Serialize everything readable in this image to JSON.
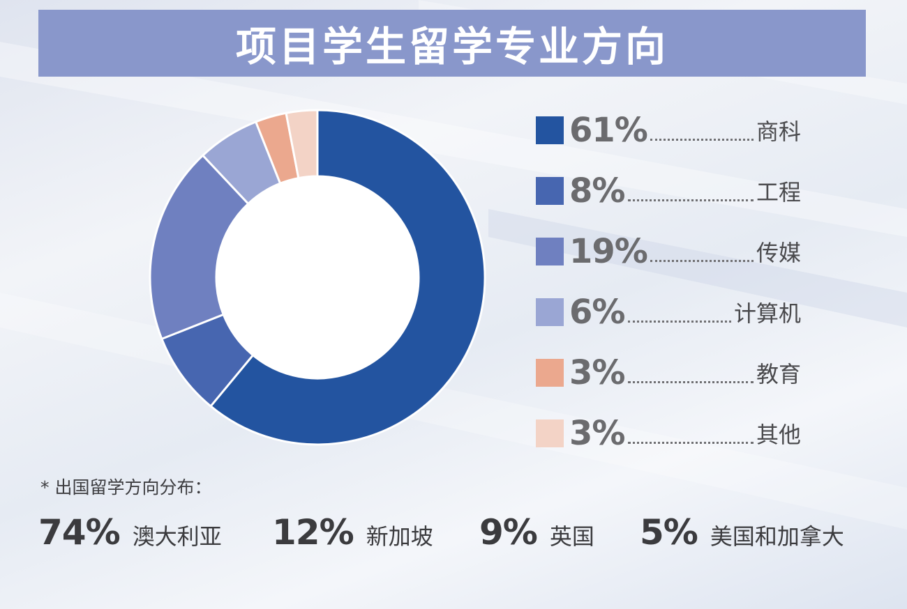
{
  "title": "项目学生留学专业方向",
  "chart_data": {
    "type": "pie",
    "variant": "donut",
    "slices": [
      {
        "label": "商科",
        "pct_label": "61%",
        "value": 61,
        "color": "#2354a0"
      },
      {
        "label": "工程",
        "pct_label": "8%",
        "value": 8,
        "color": "#4766b0"
      },
      {
        "label": "传媒",
        "pct_label": "19%",
        "value": 19,
        "color": "#6f80c0"
      },
      {
        "label": "计算机",
        "pct_label": "6%",
        "value": 6,
        "color": "#9aa6d4"
      },
      {
        "label": "教育",
        "pct_label": "3%",
        "value": 3,
        "color": "#eba88e"
      },
      {
        "label": "其他",
        "pct_label": "3%",
        "value": 3,
        "color": "#f3d3c6"
      }
    ],
    "legend_position": "right"
  },
  "note": "* 出国留学方向分布：",
  "distribution": [
    {
      "pct": "74%",
      "label": "澳大利亚"
    },
    {
      "pct": "12%",
      "label": "新加坡"
    },
    {
      "pct": "9%",
      "label": "英国"
    },
    {
      "pct": "5%",
      "label": "美国和加拿大"
    }
  ]
}
